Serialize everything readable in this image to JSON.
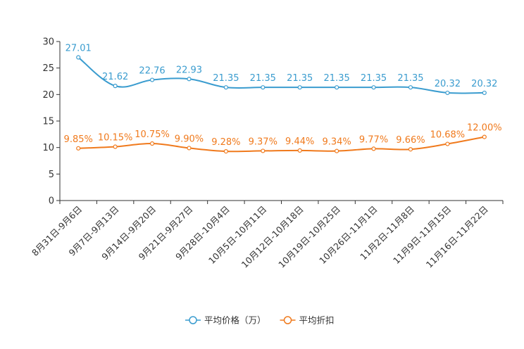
{
  "chart_data": {
    "type": "line",
    "title": "",
    "xlabel": "",
    "ylabel": "",
    "ylim": [
      0,
      30
    ],
    "yticks": [
      0,
      5,
      10,
      15,
      20,
      25,
      30
    ],
    "grid": false,
    "legend_position": "bottom",
    "categories": [
      "8月31日-9月6日",
      "9月7日-9月13日",
      "9月14日-9月20日",
      "9月21日-9月27日",
      "9月28日-10月4日",
      "10月5日-10月11日",
      "10月12日-10月18日",
      "10月19日-10月25日",
      "10月26日-11月1日",
      "11月2日-11月8日",
      "11月9日-11月15日",
      "11月16日-11月22日"
    ],
    "series": [
      {
        "name": "平均价格（万）",
        "color": "#3a9ccf",
        "values": [
          27.01,
          21.62,
          22.76,
          22.93,
          21.35,
          21.35,
          21.35,
          21.35,
          21.35,
          21.35,
          20.32,
          20.32
        ],
        "labels": [
          "27.01",
          "21.62",
          "22.76",
          "22.93",
          "21.35",
          "21.35",
          "21.35",
          "21.35",
          "21.35",
          "21.35",
          "20.32",
          "20.32"
        ]
      },
      {
        "name": "平均折扣",
        "color": "#f07a1d",
        "values": [
          9.85,
          10.15,
          10.75,
          9.9,
          9.28,
          9.37,
          9.44,
          9.34,
          9.77,
          9.66,
          10.68,
          12.0
        ],
        "labels": [
          "9.85%",
          "10.15%",
          "10.75%",
          "9.90%",
          "9.28%",
          "9.37%",
          "9.44%",
          "9.34%",
          "9.77%",
          "9.66%",
          "10.68%",
          "12.00%"
        ]
      }
    ]
  }
}
